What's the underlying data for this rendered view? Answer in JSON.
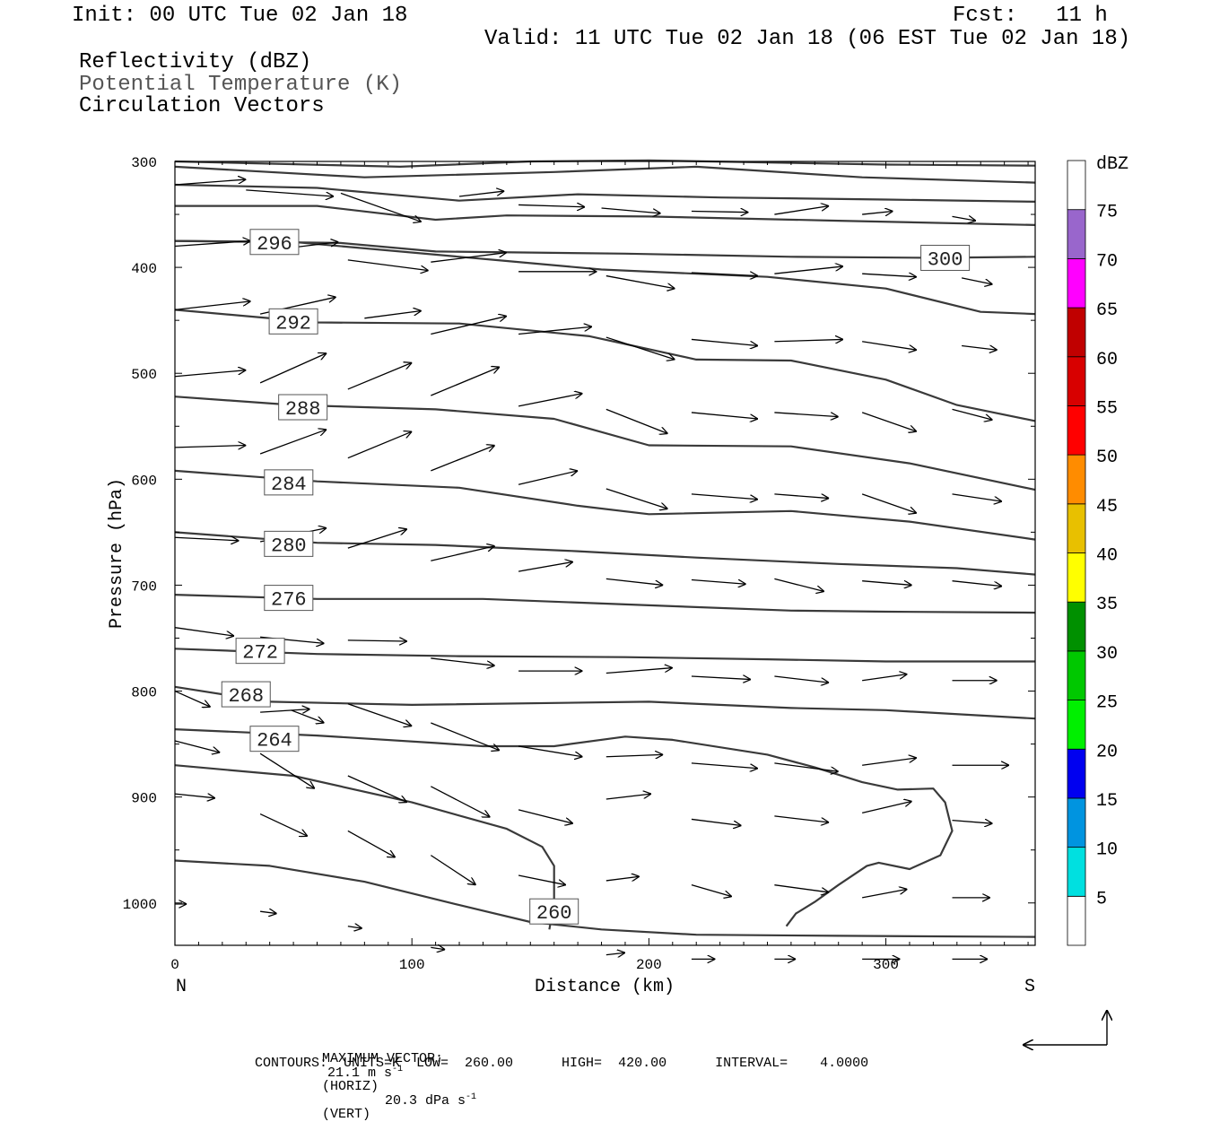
{
  "header": {
    "init": "Init: 00 UTC Tue 02 Jan 18",
    "fcst": "Fcst:   11 h",
    "valid": "Valid: 11 UTC Tue 02 Jan 18 (06 EST Tue 02 Jan 18)",
    "field1": "Reflectivity (dBZ)",
    "field2": "Potential Temperature (K)",
    "field3": "Circulation Vectors"
  },
  "footer": {
    "max_vector_label": "MAXIMUM VECTOR:",
    "max_vector_horiz": "21.1 m s",
    "horiz_exp": "-1",
    "horiz_tag": "(HORIZ)",
    "max_vector_vert": "20.3 dPa s",
    "vert_exp": "-1",
    "vert_tag": "(VERT)",
    "contours": "CONTOURS:  UNITS=K  LOW=  260.00      HIGH=  420.00      INTERVAL=    4.0000"
  },
  "colors": {
    "contour": "#3a3a3a",
    "vector": "#000000",
    "colorbar": [
      "#ffffff",
      "#00e0e0",
      "#0094e0",
      "#0000f0",
      "#00f000",
      "#00c800",
      "#009000",
      "#ffff00",
      "#e8c000",
      "#ff8c00",
      "#ff0000",
      "#d80000",
      "#c00000",
      "#ff00ff",
      "#9966cc",
      "#ffffff"
    ]
  },
  "chart_data": {
    "type": "cross-section",
    "xlabel": "Distance (km)",
    "ylabel": "Pressure (hPa)",
    "xlim": [
      0,
      363
    ],
    "ylim": [
      1040,
      300
    ],
    "x_ticks": [
      0,
      100,
      200,
      300
    ],
    "y_ticks": [
      300,
      400,
      500,
      600,
      700,
      800,
      900,
      1000
    ],
    "left_end_label": "N",
    "right_end_label": "S",
    "colorbar": {
      "title": "dBZ",
      "levels": [
        5,
        10,
        15,
        20,
        25,
        30,
        35,
        40,
        45,
        50,
        55,
        60,
        65,
        70,
        75
      ]
    },
    "contours": [
      {
        "label": "",
        "points": [
          [
            0,
            300
          ],
          [
            95,
            305
          ],
          [
            150,
            300
          ],
          [
            200,
            299
          ],
          [
            300,
            303
          ],
          [
            363,
            304
          ]
        ]
      },
      {
        "label": "",
        "points": [
          [
            0,
            305
          ],
          [
            80,
            315
          ],
          [
            160,
            310
          ],
          [
            220,
            305
          ],
          [
            290,
            315
          ],
          [
            363,
            320
          ]
        ]
      },
      {
        "label": "",
        "points": [
          [
            0,
            322
          ],
          [
            60,
            325
          ],
          [
            120,
            337
          ],
          [
            170,
            331
          ],
          [
            230,
            334
          ],
          [
            300,
            336
          ],
          [
            363,
            338
          ]
        ]
      },
      {
        "label": "",
        "points": [
          [
            0,
            342
          ],
          [
            60,
            342
          ],
          [
            110,
            355
          ],
          [
            140,
            351
          ],
          [
            200,
            352
          ],
          [
            280,
            356
          ],
          [
            363,
            360
          ]
        ]
      },
      {
        "label": "300",
        "lx": 325,
        "ly": 391,
        "points": [
          [
            0,
            375
          ],
          [
            70,
            377
          ],
          [
            110,
            385
          ],
          [
            190,
            387
          ],
          [
            260,
            390
          ],
          [
            320,
            391
          ],
          [
            363,
            390
          ]
        ]
      },
      {
        "label": "296",
        "lx": 42,
        "ly": 376,
        "points": [
          [
            0,
            375
          ],
          [
            50,
            376
          ],
          [
            95,
            385
          ],
          [
            140,
            394
          ],
          [
            180,
            402
          ],
          [
            250,
            409
          ],
          [
            300,
            420
          ],
          [
            340,
            442
          ],
          [
            363,
            444
          ]
        ]
      },
      {
        "label": "292",
        "lx": 50,
        "ly": 451,
        "points": [
          [
            0,
            440
          ],
          [
            60,
            452
          ],
          [
            120,
            453
          ],
          [
            175,
            465
          ],
          [
            220,
            487
          ],
          [
            260,
            488
          ],
          [
            300,
            506
          ],
          [
            330,
            530
          ],
          [
            363,
            545
          ]
        ]
      },
      {
        "label": "288",
        "lx": 54,
        "ly": 532,
        "points": [
          [
            0,
            522
          ],
          [
            50,
            530
          ],
          [
            110,
            534
          ],
          [
            160,
            543
          ],
          [
            200,
            568
          ],
          [
            260,
            569
          ],
          [
            310,
            585
          ],
          [
            363,
            610
          ]
        ]
      },
      {
        "label": "284",
        "lx": 48,
        "ly": 603,
        "points": [
          [
            0,
            592
          ],
          [
            60,
            602
          ],
          [
            120,
            608
          ],
          [
            170,
            625
          ],
          [
            200,
            633
          ],
          [
            260,
            630
          ],
          [
            310,
            640
          ],
          [
            363,
            657
          ]
        ]
      },
      {
        "label": "280",
        "lx": 48,
        "ly": 661,
        "points": [
          [
            0,
            650
          ],
          [
            60,
            660
          ],
          [
            110,
            662
          ],
          [
            170,
            668
          ],
          [
            220,
            674
          ],
          [
            280,
            680
          ],
          [
            330,
            684
          ],
          [
            363,
            690
          ]
        ]
      },
      {
        "label": "276",
        "lx": 48,
        "ly": 712,
        "points": [
          [
            0,
            709
          ],
          [
            60,
            713
          ],
          [
            130,
            713
          ],
          [
            200,
            719
          ],
          [
            260,
            724
          ],
          [
            300,
            725
          ],
          [
            363,
            726
          ]
        ]
      },
      {
        "label": "272",
        "lx": 36,
        "ly": 762,
        "points": [
          [
            0,
            760
          ],
          [
            60,
            765
          ],
          [
            120,
            767
          ],
          [
            190,
            768
          ],
          [
            250,
            770
          ],
          [
            300,
            772
          ],
          [
            363,
            772
          ]
        ]
      },
      {
        "label": "268",
        "lx": 30,
        "ly": 803,
        "points": [
          [
            0,
            796
          ],
          [
            40,
            810
          ],
          [
            100,
            813
          ],
          [
            200,
            810
          ],
          [
            260,
            816
          ],
          [
            300,
            818
          ],
          [
            363,
            826
          ]
        ]
      },
      {
        "label": "264",
        "lx": 42,
        "ly": 845,
        "points": [
          [
            0,
            836
          ],
          [
            60,
            842
          ],
          [
            110,
            849
          ],
          [
            130,
            852
          ],
          [
            160,
            852
          ],
          [
            190,
            843
          ],
          [
            210,
            846
          ],
          [
            250,
            860
          ],
          [
            270,
            872
          ],
          [
            290,
            886
          ],
          [
            305,
            893
          ],
          [
            320,
            892
          ],
          [
            325,
            905
          ],
          [
            328,
            932
          ],
          [
            323,
            955
          ],
          [
            310,
            968
          ],
          [
            297,
            962
          ],
          [
            292,
            965
          ],
          [
            280,
            983
          ],
          [
            270,
            999
          ],
          [
            262,
            1010
          ],
          [
            258,
            1022
          ]
        ]
      },
      {
        "label": "",
        "points": [
          [
            0,
            870
          ],
          [
            50,
            880
          ],
          [
            100,
            905
          ],
          [
            140,
            930
          ],
          [
            155,
            947
          ],
          [
            160,
            965
          ],
          [
            160,
            1000
          ],
          [
            158,
            1025
          ]
        ]
      },
      {
        "label": "260",
        "lx": 160,
        "ly": 1008,
        "points": [
          [
            0,
            960
          ],
          [
            40,
            965
          ],
          [
            80,
            980
          ],
          [
            120,
            1002
          ],
          [
            150,
            1018
          ],
          [
            180,
            1025
          ],
          [
            220,
            1030
          ],
          [
            280,
            1031
          ],
          [
            363,
            1032
          ]
        ]
      }
    ],
    "vectors": [
      [
        0,
        322,
        30,
        317
      ],
      [
        30,
        327,
        67,
        333
      ],
      [
        70,
        330,
        104,
        357
      ],
      [
        120,
        333,
        139,
        328
      ],
      [
        145,
        341,
        173,
        343
      ],
      [
        180,
        344,
        205,
        349
      ],
      [
        218,
        347,
        242,
        348
      ],
      [
        253,
        350,
        276,
        342
      ],
      [
        290,
        350,
        303,
        347
      ],
      [
        328,
        352,
        338,
        356
      ],
      [
        0,
        380,
        32,
        375
      ],
      [
        36,
        385,
        69,
        376
      ],
      [
        73,
        393,
        107,
        403
      ],
      [
        108,
        395,
        140,
        386
      ],
      [
        145,
        404,
        178,
        404
      ],
      [
        182,
        408,
        211,
        420
      ],
      [
        218,
        405,
        246,
        408
      ],
      [
        253,
        406,
        282,
        399
      ],
      [
        290,
        406,
        313,
        409
      ],
      [
        332,
        410,
        345,
        416
      ],
      [
        0,
        440,
        32,
        432
      ],
      [
        36,
        444,
        68,
        428
      ],
      [
        80,
        448,
        104,
        441
      ],
      [
        108,
        463,
        140,
        446
      ],
      [
        145,
        463,
        176,
        456
      ],
      [
        182,
        466,
        211,
        487
      ],
      [
        218,
        468,
        246,
        474
      ],
      [
        253,
        470,
        282,
        468
      ],
      [
        290,
        470,
        313,
        478
      ],
      [
        332,
        474,
        347,
        478
      ],
      [
        0,
        503,
        30,
        497
      ],
      [
        36,
        509,
        64,
        481
      ],
      [
        73,
        515,
        100,
        490
      ],
      [
        108,
        521,
        137,
        494
      ],
      [
        145,
        531,
        172,
        519
      ],
      [
        182,
        534,
        208,
        557
      ],
      [
        218,
        537,
        246,
        543
      ],
      [
        253,
        537,
        280,
        541
      ],
      [
        290,
        537,
        313,
        555
      ],
      [
        328,
        534,
        345,
        544
      ],
      [
        0,
        570,
        30,
        568
      ],
      [
        36,
        576,
        64,
        553
      ],
      [
        73,
        580,
        100,
        555
      ],
      [
        108,
        592,
        135,
        568
      ],
      [
        145,
        605,
        170,
        592
      ],
      [
        182,
        609,
        208,
        628
      ],
      [
        218,
        614,
        246,
        619
      ],
      [
        253,
        614,
        276,
        618
      ],
      [
        290,
        614,
        313,
        632
      ],
      [
        328,
        614,
        349,
        621
      ],
      [
        0,
        655,
        27,
        658
      ],
      [
        36,
        659,
        64,
        646
      ],
      [
        73,
        665,
        98,
        647
      ],
      [
        108,
        677,
        135,
        663
      ],
      [
        145,
        687,
        168,
        678
      ],
      [
        182,
        694,
        206,
        700
      ],
      [
        218,
        695,
        241,
        699
      ],
      [
        253,
        694,
        274,
        706
      ],
      [
        290,
        696,
        311,
        700
      ],
      [
        328,
        696,
        349,
        701
      ],
      [
        0,
        740,
        25,
        748
      ],
      [
        36,
        749,
        63,
        755
      ],
      [
        73,
        752,
        98,
        753
      ],
      [
        108,
        769,
        135,
        776
      ],
      [
        145,
        781,
        172,
        781
      ],
      [
        182,
        783,
        210,
        778
      ],
      [
        218,
        786,
        243,
        789
      ],
      [
        253,
        786,
        276,
        792
      ],
      [
        290,
        790,
        309,
        784
      ],
      [
        328,
        790,
        347,
        790
      ],
      [
        0,
        800,
        15,
        815
      ],
      [
        36,
        820,
        57,
        817
      ],
      [
        49,
        818,
        63,
        830
      ],
      [
        73,
        812,
        100,
        833
      ],
      [
        108,
        830,
        137,
        856
      ],
      [
        145,
        852,
        172,
        862
      ],
      [
        182,
        862,
        206,
        860
      ],
      [
        218,
        868,
        246,
        873
      ],
      [
        253,
        868,
        280,
        876
      ],
      [
        290,
        870,
        313,
        863
      ],
      [
        328,
        870,
        352,
        870
      ],
      [
        0,
        847,
        19,
        858
      ],
      [
        36,
        859,
        59,
        892
      ],
      [
        73,
        880,
        98,
        905
      ],
      [
        108,
        890,
        133,
        919
      ],
      [
        145,
        912,
        168,
        925
      ],
      [
        182,
        902,
        201,
        897
      ],
      [
        218,
        921,
        239,
        927
      ],
      [
        253,
        918,
        276,
        924
      ],
      [
        290,
        915,
        311,
        904
      ],
      [
        328,
        922,
        345,
        925
      ],
      [
        0,
        897,
        17,
        901
      ],
      [
        36,
        916,
        56,
        937
      ],
      [
        73,
        932,
        93,
        957
      ],
      [
        108,
        955,
        127,
        983
      ],
      [
        145,
        974,
        165,
        983
      ],
      [
        182,
        979,
        196,
        975
      ],
      [
        218,
        983,
        235,
        994
      ],
      [
        253,
        983,
        276,
        990
      ],
      [
        290,
        995,
        309,
        987
      ],
      [
        328,
        995,
        344,
        995
      ],
      [
        0,
        1001,
        5,
        1001
      ],
      [
        36,
        1008,
        43,
        1010
      ],
      [
        73,
        1022,
        79,
        1024
      ],
      [
        108,
        1042,
        114,
        1044
      ],
      [
        182,
        1049,
        190,
        1047
      ],
      [
        218,
        1053,
        228,
        1053
      ],
      [
        253,
        1053,
        262,
        1053
      ],
      [
        290,
        1053,
        306,
        1053
      ],
      [
        328,
        1053,
        343,
        1053
      ]
    ]
  }
}
